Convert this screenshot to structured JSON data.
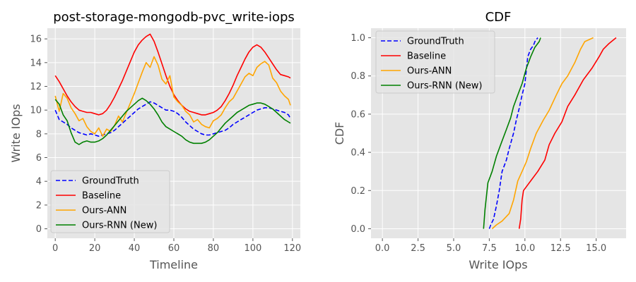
{
  "chart_data": [
    {
      "type": "line",
      "title": "post-storage-mongodb-pvc_write-iops",
      "xlabel": "Timeline",
      "ylabel": "Write IOps",
      "xlim": [
        -4,
        124
      ],
      "ylim": [
        -0.8,
        16.9
      ],
      "xticks": [
        0,
        20,
        40,
        60,
        80,
        100,
        120
      ],
      "yticks": [
        0,
        2,
        4,
        6,
        8,
        10,
        12,
        14,
        16
      ],
      "grid": true,
      "legend": "lower-left",
      "x": [
        0,
        2,
        4,
        6,
        8,
        10,
        12,
        14,
        16,
        18,
        20,
        22,
        24,
        26,
        28,
        30,
        32,
        34,
        36,
        38,
        40,
        42,
        44,
        46,
        48,
        50,
        52,
        54,
        56,
        58,
        60,
        62,
        64,
        66,
        68,
        70,
        72,
        74,
        76,
        78,
        80,
        82,
        84,
        86,
        88,
        90,
        92,
        94,
        96,
        98,
        100,
        102,
        104,
        106,
        108,
        110,
        112,
        114,
        116,
        118,
        119
      ],
      "series": [
        {
          "name": "GroundTruth",
          "color": "#0000ff",
          "dashed": true,
          "values": [
            10.0,
            9.2,
            9.0,
            8.8,
            8.5,
            8.3,
            8.1,
            8.0,
            7.9,
            8.0,
            7.9,
            7.8,
            7.9,
            8.0,
            8.1,
            8.3,
            8.6,
            8.9,
            9.2,
            9.5,
            9.8,
            10.1,
            10.3,
            10.5,
            10.7,
            10.6,
            10.4,
            10.2,
            10.0,
            10.0,
            9.9,
            9.7,
            9.4,
            9.0,
            8.7,
            8.4,
            8.2,
            8.0,
            7.9,
            7.9,
            8.0,
            8.1,
            8.2,
            8.3,
            8.5,
            8.8,
            9.0,
            9.2,
            9.4,
            9.6,
            9.8,
            10.0,
            10.1,
            10.2,
            10.2,
            10.1,
            10.0,
            9.9,
            9.8,
            9.6,
            9.3
          ]
        },
        {
          "name": "Baseline",
          "color": "#ff0000",
          "dashed": false,
          "values": [
            12.9,
            12.4,
            11.8,
            11.2,
            10.7,
            10.3,
            10.0,
            9.9,
            9.8,
            9.8,
            9.7,
            9.6,
            9.7,
            10.0,
            10.5,
            11.1,
            11.8,
            12.5,
            13.3,
            14.1,
            14.9,
            15.5,
            15.9,
            16.2,
            16.4,
            15.8,
            14.9,
            13.9,
            12.9,
            12.0,
            11.3,
            10.8,
            10.4,
            10.1,
            9.9,
            9.8,
            9.7,
            9.6,
            9.6,
            9.7,
            9.8,
            10.0,
            10.3,
            10.8,
            11.4,
            12.1,
            12.9,
            13.6,
            14.3,
            14.9,
            15.3,
            15.5,
            15.3,
            14.9,
            14.4,
            13.9,
            13.4,
            13.0,
            12.9,
            12.8,
            12.7
          ]
        },
        {
          "name": "Ours-ANN",
          "color": "#ffa500",
          "dashed": false,
          "values": [
            11.2,
            9.9,
            11.4,
            11.0,
            10.2,
            9.7,
            9.1,
            9.3,
            8.6,
            8.2,
            8.0,
            8.5,
            7.8,
            8.4,
            8.2,
            8.7,
            9.5,
            9.0,
            9.8,
            10.6,
            11.4,
            12.3,
            13.2,
            14.0,
            13.6,
            14.5,
            13.8,
            12.6,
            12.2,
            12.9,
            11.1,
            10.7,
            10.4,
            9.9,
            9.6,
            9.0,
            9.2,
            8.8,
            8.6,
            8.5,
            9.1,
            9.3,
            9.6,
            10.2,
            10.7,
            11.0,
            11.6,
            12.2,
            12.8,
            13.1,
            12.9,
            13.6,
            13.9,
            14.1,
            13.8,
            12.7,
            12.3,
            11.6,
            11.2,
            10.9,
            10.4
          ]
        },
        {
          "name": "Ours-RNN (New)",
          "color": "#008000",
          "dashed": false,
          "values": [
            10.9,
            10.5,
            9.6,
            9.1,
            8.1,
            7.3,
            7.1,
            7.3,
            7.4,
            7.3,
            7.3,
            7.4,
            7.6,
            7.9,
            8.3,
            8.7,
            9.1,
            9.5,
            9.9,
            10.2,
            10.5,
            10.8,
            11.0,
            10.8,
            10.5,
            10.1,
            9.6,
            9.0,
            8.6,
            8.4,
            8.2,
            8.0,
            7.8,
            7.5,
            7.3,
            7.2,
            7.2,
            7.2,
            7.3,
            7.5,
            7.8,
            8.1,
            8.5,
            8.9,
            9.2,
            9.5,
            9.8,
            10.0,
            10.2,
            10.4,
            10.5,
            10.6,
            10.6,
            10.5,
            10.3,
            10.1,
            9.8,
            9.5,
            9.2,
            9.0,
            8.9
          ]
        }
      ]
    },
    {
      "type": "line",
      "title": "CDF",
      "xlabel": "Write IOps",
      "ylabel": "CDF",
      "xlim": [
        -0.8,
        17.1
      ],
      "ylim": [
        -0.05,
        1.05
      ],
      "xticks": [
        0.0,
        2.5,
        5.0,
        7.5,
        10.0,
        12.5,
        15.0
      ],
      "xticklabels": [
        "0.0",
        "2.5",
        "5.0",
        "7.5",
        "10.0",
        "12.5",
        "15.0"
      ],
      "yticks": [
        0.0,
        0.2,
        0.4,
        0.6,
        0.8,
        1.0
      ],
      "yticklabels": [
        "0.0",
        "0.2",
        "0.4",
        "0.6",
        "0.8",
        "1.0"
      ],
      "grid": true,
      "legend": "upper-left",
      "series": [
        {
          "name": "GroundTruth",
          "color": "#0000ff",
          "dashed": true,
          "points": [
            [
              7.5,
              0.0
            ],
            [
              7.6,
              0.02
            ],
            [
              7.8,
              0.05
            ],
            [
              8.0,
              0.12
            ],
            [
              8.2,
              0.2
            ],
            [
              8.4,
              0.3
            ],
            [
              8.7,
              0.36
            ],
            [
              8.9,
              0.42
            ],
            [
              9.2,
              0.5
            ],
            [
              9.4,
              0.57
            ],
            [
              9.6,
              0.63
            ],
            [
              9.8,
              0.7
            ],
            [
              10.0,
              0.76
            ],
            [
              10.1,
              0.83
            ],
            [
              10.2,
              0.9
            ],
            [
              10.4,
              0.94
            ],
            [
              10.6,
              0.96
            ],
            [
              10.7,
              0.98
            ],
            [
              10.9,
              1.0
            ]
          ]
        },
        {
          "name": "Baseline",
          "color": "#ff0000",
          "dashed": false,
          "points": [
            [
              9.6,
              0.0
            ],
            [
              9.7,
              0.05
            ],
            [
              9.8,
              0.15
            ],
            [
              9.9,
              0.2
            ],
            [
              10.5,
              0.26
            ],
            [
              10.9,
              0.3
            ],
            [
              11.4,
              0.36
            ],
            [
              11.7,
              0.44
            ],
            [
              12.1,
              0.5
            ],
            [
              12.6,
              0.56
            ],
            [
              13.0,
              0.64
            ],
            [
              13.5,
              0.7
            ],
            [
              14.1,
              0.78
            ],
            [
              14.7,
              0.84
            ],
            [
              15.2,
              0.9
            ],
            [
              15.5,
              0.94
            ],
            [
              15.9,
              0.97
            ],
            [
              16.4,
              1.0
            ]
          ]
        },
        {
          "name": "Ours-ANN",
          "color": "#ffa500",
          "dashed": false,
          "points": [
            [
              7.7,
              0.0
            ],
            [
              8.0,
              0.02
            ],
            [
              8.4,
              0.04
            ],
            [
              8.9,
              0.08
            ],
            [
              9.2,
              0.15
            ],
            [
              9.5,
              0.25
            ],
            [
              9.8,
              0.3
            ],
            [
              10.1,
              0.35
            ],
            [
              10.4,
              0.42
            ],
            [
              10.8,
              0.5
            ],
            [
              11.3,
              0.57
            ],
            [
              11.7,
              0.62
            ],
            [
              12.2,
              0.7
            ],
            [
              12.6,
              0.76
            ],
            [
              13.0,
              0.8
            ],
            [
              13.5,
              0.87
            ],
            [
              13.9,
              0.94
            ],
            [
              14.2,
              0.98
            ],
            [
              14.8,
              1.0
            ]
          ]
        },
        {
          "name": "Ours-RNN (New)",
          "color": "#008000",
          "dashed": false,
          "points": [
            [
              7.1,
              0.0
            ],
            [
              7.2,
              0.1
            ],
            [
              7.4,
              0.24
            ],
            [
              7.7,
              0.3
            ],
            [
              8.0,
              0.38
            ],
            [
              8.4,
              0.46
            ],
            [
              8.7,
              0.52
            ],
            [
              9.0,
              0.58
            ],
            [
              9.2,
              0.64
            ],
            [
              9.5,
              0.7
            ],
            [
              9.8,
              0.76
            ],
            [
              10.1,
              0.84
            ],
            [
              10.4,
              0.9
            ],
            [
              10.7,
              0.95
            ],
            [
              11.0,
              0.98
            ],
            [
              11.1,
              1.0
            ]
          ]
        }
      ]
    }
  ]
}
